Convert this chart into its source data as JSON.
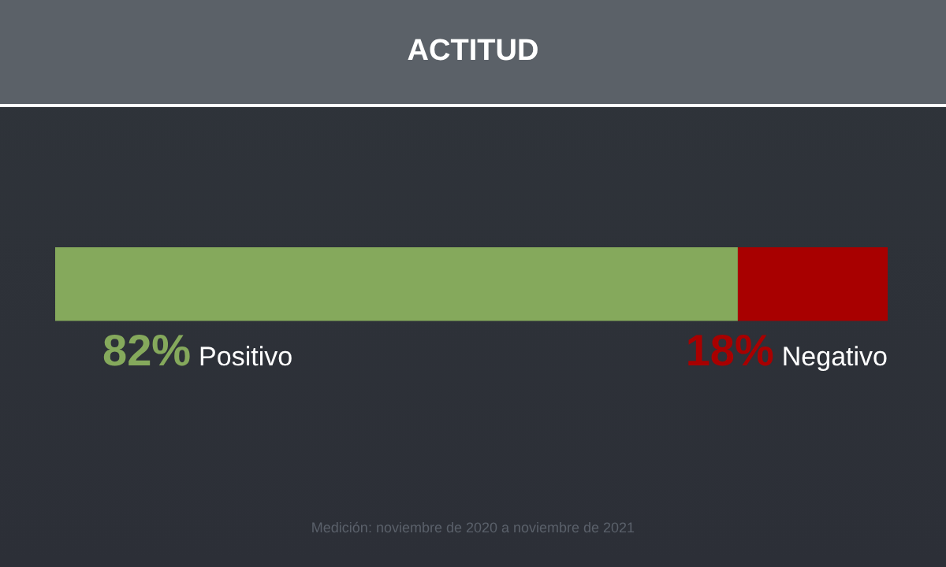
{
  "chart_data": {
    "type": "bar",
    "title": "ACTITUD",
    "orientation": "horizontal",
    "stacked": true,
    "categories": [
      null
    ],
    "series": [
      {
        "name": "Positivo",
        "color": "#85a95c",
        "values": [
          82
        ],
        "value_labels": [
          "82%"
        ]
      },
      {
        "name": "Negativo",
        "color": "#a80000",
        "values": [
          18
        ],
        "value_labels": [
          "18%"
        ]
      }
    ],
    "annotations": [
      "Medición: noviembre de 2020 a noviembre de 2021"
    ]
  }
}
